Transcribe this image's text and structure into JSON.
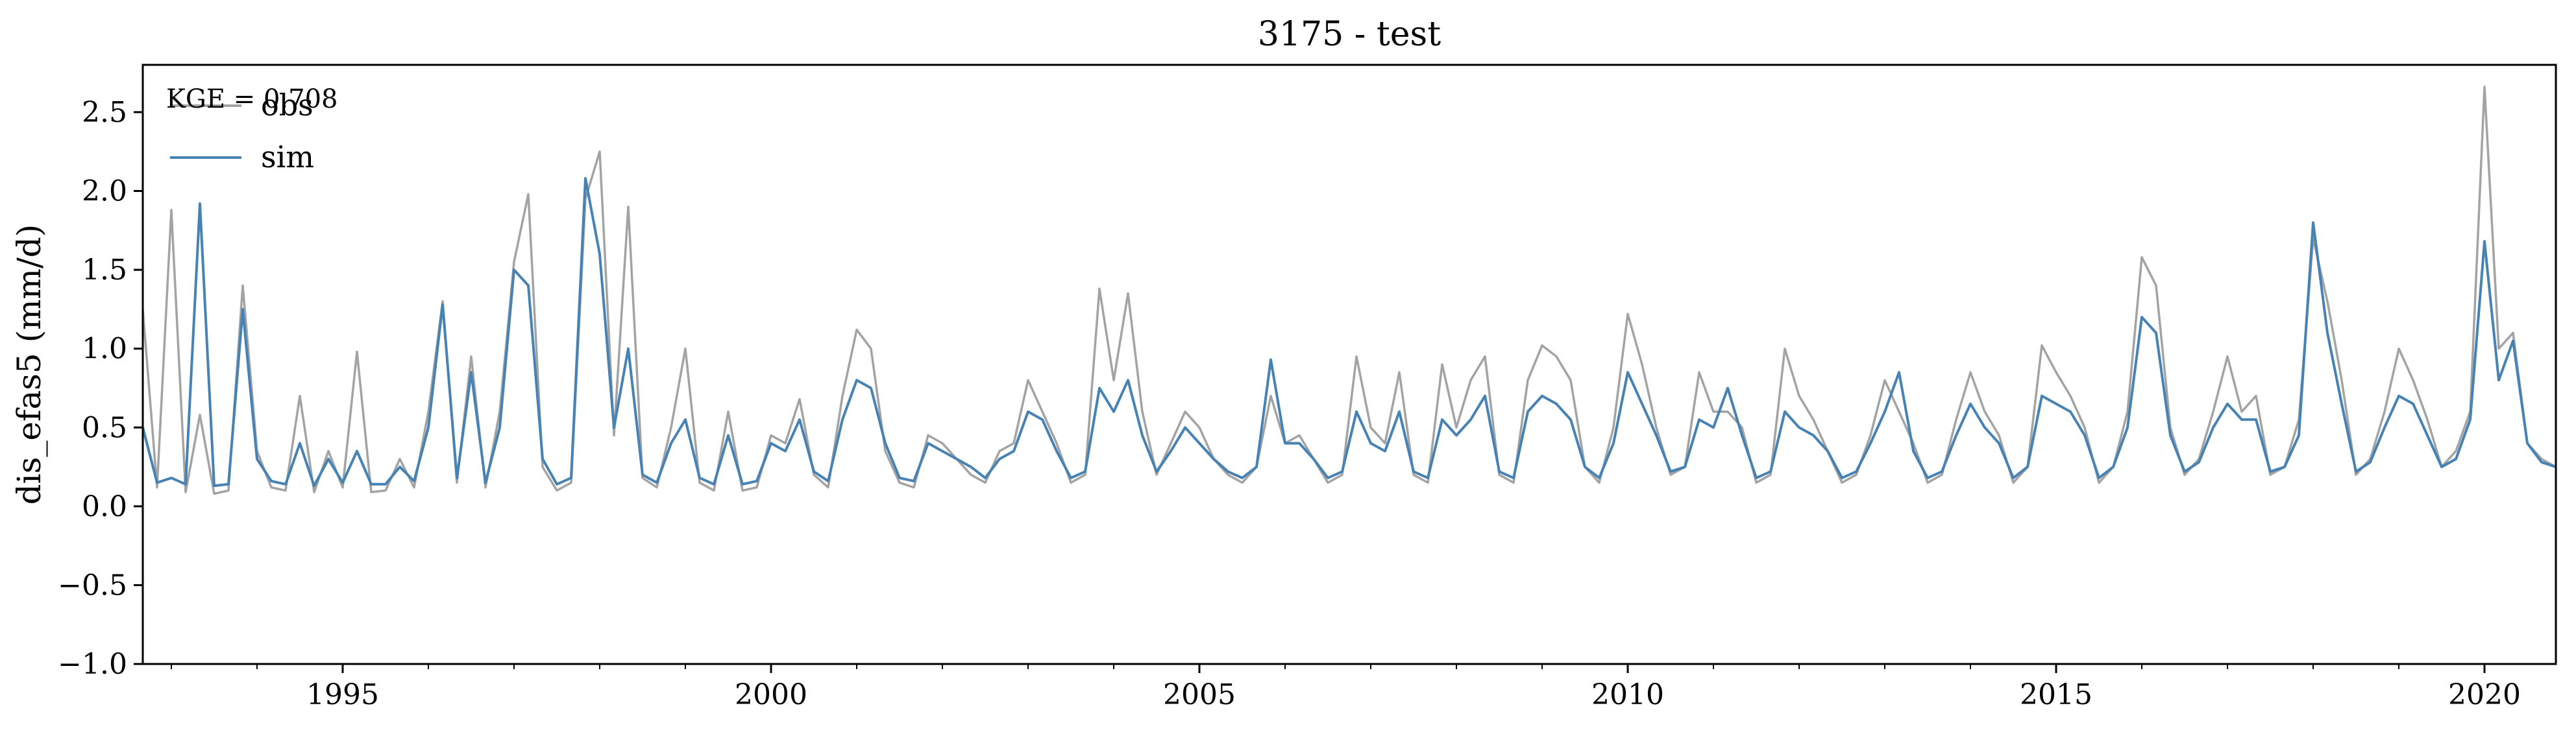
{
  "chart_data": {
    "type": "line",
    "title": "3175 - test",
    "xlabel": "",
    "ylabel": "dis_efas5 (mm/d)",
    "x_range": [
      "1992-09-01",
      "2020-11-01"
    ],
    "ylim": [
      -1.0,
      2.8
    ],
    "x_ticks": [
      "1995",
      "2000",
      "2005",
      "2010",
      "2015",
      "2020"
    ],
    "y_ticks": [
      "2.5",
      "2.0",
      "1.5",
      "1.0",
      "0.5",
      "0.0",
      "−0.5",
      "−1.0"
    ],
    "grid": false,
    "legend_position": "top-left",
    "annotation": "KGE = 0.708",
    "colors": {
      "obs": "#a3a3a3",
      "sim": "#4682b4"
    },
    "series": [
      {
        "name": "obs",
        "x": [
          "1992-09",
          "1992-11",
          "1993-01",
          "1993-03",
          "1993-05",
          "1993-07",
          "1993-09",
          "1993-11",
          "1994-01",
          "1994-03",
          "1994-05",
          "1994-07",
          "1994-09",
          "1994-11",
          "1995-01",
          "1995-03",
          "1995-05",
          "1995-07",
          "1995-09",
          "1995-11",
          "1996-01",
          "1996-03",
          "1996-05",
          "1996-07",
          "1996-09",
          "1996-11",
          "1997-01",
          "1997-03",
          "1997-05",
          "1997-07",
          "1997-09",
          "1997-11",
          "1998-01",
          "1998-03",
          "1998-05",
          "1998-07",
          "1998-09",
          "1998-11",
          "1999-01",
          "1999-03",
          "1999-05",
          "1999-07",
          "1999-09",
          "1999-11",
          "2000-01",
          "2000-03",
          "2000-05",
          "2000-07",
          "2000-09",
          "2000-11",
          "2001-01",
          "2001-03",
          "2001-05",
          "2001-07",
          "2001-09",
          "2001-11",
          "2002-01",
          "2002-03",
          "2002-05",
          "2002-07",
          "2002-09",
          "2002-11",
          "2003-01",
          "2003-03",
          "2003-05",
          "2003-07",
          "2003-09",
          "2003-11",
          "2004-01",
          "2004-03",
          "2004-05",
          "2004-07",
          "2004-09",
          "2004-11",
          "2005-01",
          "2005-03",
          "2005-05",
          "2005-07",
          "2005-09",
          "2005-11",
          "2006-01",
          "2006-03",
          "2006-05",
          "2006-07",
          "2006-09",
          "2006-11",
          "2007-01",
          "2007-03",
          "2007-05",
          "2007-07",
          "2007-09",
          "2007-11",
          "2008-01",
          "2008-03",
          "2008-05",
          "2008-07",
          "2008-09",
          "2008-11",
          "2009-01",
          "2009-03",
          "2009-05",
          "2009-07",
          "2009-09",
          "2009-11",
          "2010-01",
          "2010-03",
          "2010-05",
          "2010-07",
          "2010-09",
          "2010-11",
          "2011-01",
          "2011-03",
          "2011-05",
          "2011-07",
          "2011-09",
          "2011-11",
          "2012-01",
          "2012-03",
          "2012-05",
          "2012-07",
          "2012-09",
          "2012-11",
          "2013-01",
          "2013-03",
          "2013-05",
          "2013-07",
          "2013-09",
          "2013-11",
          "2014-01",
          "2014-03",
          "2014-05",
          "2014-07",
          "2014-09",
          "2014-11",
          "2015-01",
          "2015-03",
          "2015-05",
          "2015-07",
          "2015-09",
          "2015-11",
          "2016-01",
          "2016-03",
          "2016-05",
          "2016-07",
          "2016-09",
          "2016-11",
          "2017-01",
          "2017-03",
          "2017-05",
          "2017-07",
          "2017-09",
          "2017-11",
          "2018-01",
          "2018-03",
          "2018-05",
          "2018-07",
          "2018-09",
          "2018-11",
          "2019-01",
          "2019-03",
          "2019-05",
          "2019-07",
          "2019-09",
          "2019-11",
          "2020-01",
          "2020-03",
          "2020-05",
          "2020-07",
          "2020-09",
          "2020-11"
        ],
        "y": [
          1.25,
          0.12,
          1.88,
          0.09,
          0.58,
          0.08,
          0.1,
          1.4,
          0.35,
          0.12,
          0.1,
          0.7,
          0.09,
          0.35,
          0.12,
          0.98,
          0.09,
          0.1,
          0.3,
          0.12,
          0.6,
          1.3,
          0.15,
          0.95,
          0.12,
          0.6,
          1.55,
          1.98,
          0.25,
          0.1,
          0.15,
          1.95,
          2.25,
          0.45,
          1.9,
          0.18,
          0.12,
          0.5,
          1.0,
          0.15,
          0.1,
          0.6,
          0.1,
          0.12,
          0.45,
          0.4,
          0.68,
          0.2,
          0.12,
          0.7,
          1.12,
          1.0,
          0.35,
          0.15,
          0.12,
          0.45,
          0.4,
          0.3,
          0.2,
          0.15,
          0.35,
          0.4,
          0.8,
          0.6,
          0.4,
          0.15,
          0.2,
          1.38,
          0.8,
          1.35,
          0.6,
          0.2,
          0.4,
          0.6,
          0.5,
          0.3,
          0.2,
          0.15,
          0.25,
          0.7,
          0.4,
          0.45,
          0.3,
          0.15,
          0.2,
          0.95,
          0.5,
          0.4,
          0.85,
          0.2,
          0.15,
          0.9,
          0.5,
          0.8,
          0.95,
          0.2,
          0.15,
          0.8,
          1.02,
          0.95,
          0.8,
          0.25,
          0.15,
          0.5,
          1.22,
          0.9,
          0.5,
          0.2,
          0.25,
          0.85,
          0.6,
          0.6,
          0.5,
          0.15,
          0.2,
          1.0,
          0.7,
          0.55,
          0.35,
          0.15,
          0.2,
          0.45,
          0.8,
          0.6,
          0.4,
          0.15,
          0.2,
          0.55,
          0.85,
          0.6,
          0.45,
          0.15,
          0.25,
          1.02,
          0.85,
          0.7,
          0.5,
          0.15,
          0.25,
          0.6,
          1.58,
          1.4,
          0.5,
          0.2,
          0.3,
          0.6,
          0.95,
          0.6,
          0.7,
          0.2,
          0.25,
          0.55,
          1.7,
          1.3,
          0.8,
          0.2,
          0.3,
          0.6,
          1.0,
          0.8,
          0.55,
          0.25,
          0.35,
          0.6,
          2.66,
          1.0,
          1.1,
          0.4,
          0.3,
          0.25
        ]
      },
      {
        "name": "sim",
        "x": [
          "1992-09",
          "1992-11",
          "1993-01",
          "1993-03",
          "1993-05",
          "1993-07",
          "1993-09",
          "1993-11",
          "1994-01",
          "1994-03",
          "1994-05",
          "1994-07",
          "1994-09",
          "1994-11",
          "1995-01",
          "1995-03",
          "1995-05",
          "1995-07",
          "1995-09",
          "1995-11",
          "1996-01",
          "1996-03",
          "1996-05",
          "1996-07",
          "1996-09",
          "1996-11",
          "1997-01",
          "1997-03",
          "1997-05",
          "1997-07",
          "1997-09",
          "1997-11",
          "1998-01",
          "1998-03",
          "1998-05",
          "1998-07",
          "1998-09",
          "1998-11",
          "1999-01",
          "1999-03",
          "1999-05",
          "1999-07",
          "1999-09",
          "1999-11",
          "2000-01",
          "2000-03",
          "2000-05",
          "2000-07",
          "2000-09",
          "2000-11",
          "2001-01",
          "2001-03",
          "2001-05",
          "2001-07",
          "2001-09",
          "2001-11",
          "2002-01",
          "2002-03",
          "2002-05",
          "2002-07",
          "2002-09",
          "2002-11",
          "2003-01",
          "2003-03",
          "2003-05",
          "2003-07",
          "2003-09",
          "2003-11",
          "2004-01",
          "2004-03",
          "2004-05",
          "2004-07",
          "2004-09",
          "2004-11",
          "2005-01",
          "2005-03",
          "2005-05",
          "2005-07",
          "2005-09",
          "2005-11",
          "2006-01",
          "2006-03",
          "2006-05",
          "2006-07",
          "2006-09",
          "2006-11",
          "2007-01",
          "2007-03",
          "2007-05",
          "2007-07",
          "2007-09",
          "2007-11",
          "2008-01",
          "2008-03",
          "2008-05",
          "2008-07",
          "2008-09",
          "2008-11",
          "2009-01",
          "2009-03",
          "2009-05",
          "2009-07",
          "2009-09",
          "2009-11",
          "2010-01",
          "2010-03",
          "2010-05",
          "2010-07",
          "2010-09",
          "2010-11",
          "2011-01",
          "2011-03",
          "2011-05",
          "2011-07",
          "2011-09",
          "2011-11",
          "2012-01",
          "2012-03",
          "2012-05",
          "2012-07",
          "2012-09",
          "2012-11",
          "2013-01",
          "2013-03",
          "2013-05",
          "2013-07",
          "2013-09",
          "2013-11",
          "2014-01",
          "2014-03",
          "2014-05",
          "2014-07",
          "2014-09",
          "2014-11",
          "2015-01",
          "2015-03",
          "2015-05",
          "2015-07",
          "2015-09",
          "2015-11",
          "2016-01",
          "2016-03",
          "2016-05",
          "2016-07",
          "2016-09",
          "2016-11",
          "2017-01",
          "2017-03",
          "2017-05",
          "2017-07",
          "2017-09",
          "2017-11",
          "2018-01",
          "2018-03",
          "2018-05",
          "2018-07",
          "2018-09",
          "2018-11",
          "2019-01",
          "2019-03",
          "2019-05",
          "2019-07",
          "2019-09",
          "2019-11",
          "2020-01",
          "2020-03",
          "2020-05",
          "2020-07",
          "2020-09",
          "2020-11"
        ],
        "y": [
          0.5,
          0.15,
          0.18,
          0.14,
          1.92,
          0.13,
          0.14,
          1.25,
          0.3,
          0.16,
          0.14,
          0.4,
          0.13,
          0.3,
          0.15,
          0.35,
          0.14,
          0.14,
          0.25,
          0.16,
          0.5,
          1.28,
          0.18,
          0.85,
          0.15,
          0.5,
          1.5,
          1.4,
          0.3,
          0.14,
          0.18,
          2.08,
          1.6,
          0.5,
          1.0,
          0.2,
          0.15,
          0.4,
          0.55,
          0.18,
          0.14,
          0.45,
          0.14,
          0.16,
          0.4,
          0.35,
          0.55,
          0.22,
          0.16,
          0.55,
          0.8,
          0.75,
          0.4,
          0.18,
          0.16,
          0.4,
          0.35,
          0.3,
          0.25,
          0.18,
          0.3,
          0.35,
          0.6,
          0.55,
          0.35,
          0.18,
          0.22,
          0.75,
          0.6,
          0.8,
          0.45,
          0.22,
          0.35,
          0.5,
          0.4,
          0.3,
          0.22,
          0.18,
          0.25,
          0.93,
          0.4,
          0.4,
          0.3,
          0.18,
          0.22,
          0.6,
          0.4,
          0.35,
          0.6,
          0.22,
          0.18,
          0.55,
          0.45,
          0.55,
          0.7,
          0.22,
          0.18,
          0.6,
          0.7,
          0.65,
          0.55,
          0.25,
          0.18,
          0.4,
          0.85,
          0.65,
          0.45,
          0.22,
          0.25,
          0.55,
          0.5,
          0.75,
          0.45,
          0.18,
          0.22,
          0.6,
          0.5,
          0.45,
          0.35,
          0.18,
          0.22,
          0.4,
          0.6,
          0.85,
          0.35,
          0.18,
          0.22,
          0.45,
          0.65,
          0.5,
          0.4,
          0.18,
          0.25,
          0.7,
          0.65,
          0.6,
          0.45,
          0.18,
          0.25,
          0.5,
          1.2,
          1.1,
          0.45,
          0.22,
          0.28,
          0.5,
          0.65,
          0.55,
          0.55,
          0.22,
          0.25,
          0.45,
          1.8,
          1.1,
          0.65,
          0.22,
          0.28,
          0.5,
          0.7,
          0.65,
          0.45,
          0.25,
          0.3,
          0.55,
          1.68,
          0.8,
          1.05,
          0.4,
          0.28,
          0.25
        ]
      }
    ]
  }
}
